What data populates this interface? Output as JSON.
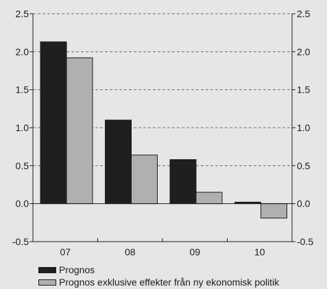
{
  "chart_data": {
    "type": "bar",
    "categories": [
      "07",
      "08",
      "09",
      "10"
    ],
    "series": [
      {
        "name": "Prognos",
        "values": [
          2.13,
          1.1,
          0.58,
          0.02
        ],
        "color": "#1f1f1f"
      },
      {
        "name": "Prognos exklusive effekter från ny ekonomisk politik",
        "values": [
          1.92,
          0.64,
          0.15,
          -0.19
        ],
        "color": "#b0b0b0"
      }
    ],
    "ylim": [
      -0.5,
      2.5
    ],
    "yticks": [
      -0.5,
      0.0,
      0.5,
      1.0,
      1.5,
      2.0,
      2.5
    ],
    "ytick_labels": [
      "-0.5",
      "0.0",
      "0.5",
      "1.0",
      "1.5",
      "2.0",
      "2.5"
    ],
    "grid": true,
    "legend_position": "bottom-left",
    "title": "",
    "xlabel": "",
    "ylabel": ""
  }
}
